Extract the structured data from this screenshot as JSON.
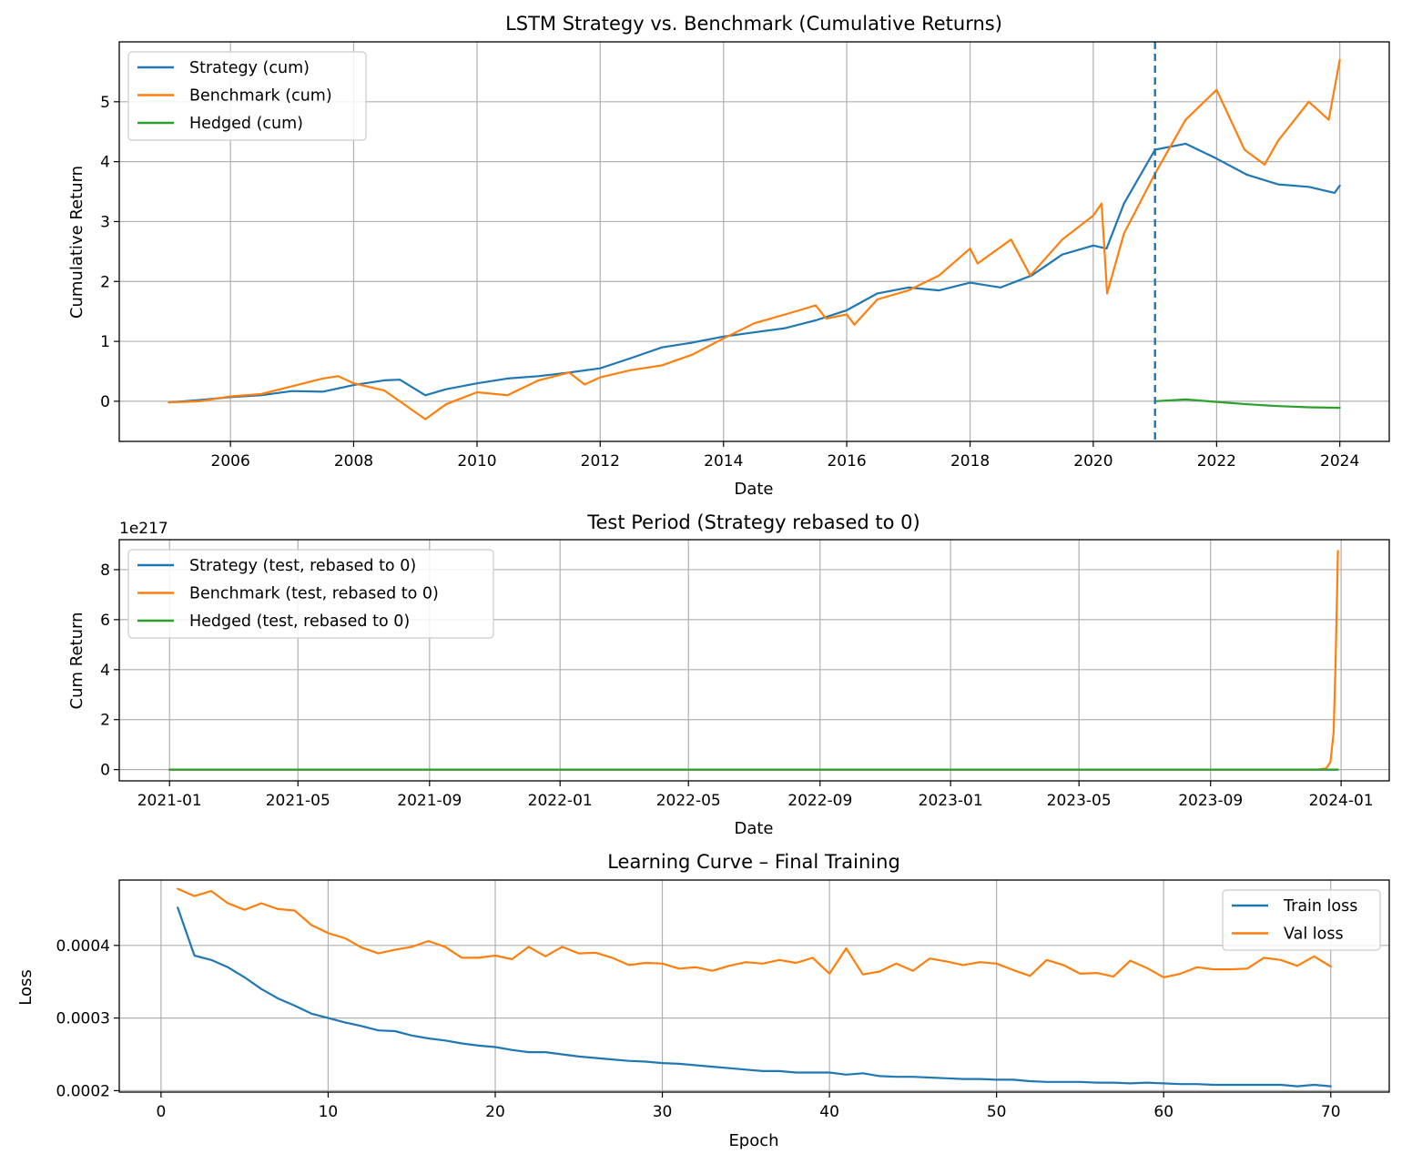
{
  "colors": {
    "strategy": "#1f77b4",
    "benchmark": "#ff7f0e",
    "hedged": "#2ca02c",
    "vline": "#1f77b4"
  },
  "chart_data": [
    {
      "type": "line",
      "title": "LSTM Strategy vs. Benchmark (Cumulative Returns)",
      "xlabel": "Date",
      "ylabel": "Cumulative Return",
      "x_type": "date",
      "xlim": [
        "2004-03-13",
        "2024-10-20"
      ],
      "ylim": [
        -0.67,
        6.0
      ],
      "x_ticks": [
        "2006",
        "2008",
        "2010",
        "2012",
        "2014",
        "2016",
        "2018",
        "2020",
        "2022",
        "2024"
      ],
      "y_ticks": [
        "0",
        "1",
        "2",
        "3",
        "4",
        "5"
      ],
      "y_tick_values": [
        0,
        1,
        2,
        3,
        4,
        5
      ],
      "grid": true,
      "legend": "upper-left",
      "vline": {
        "x": "2021-01-01",
        "style": "dashed"
      },
      "series": [
        {
          "name": "Strategy (cum)",
          "color_key": "strategy",
          "points": [
            [
              "2005-01-01",
              -0.02
            ],
            [
              "2005-07-01",
              0.02
            ],
            [
              "2006-01-01",
              0.07
            ],
            [
              "2006-07-01",
              0.1
            ],
            [
              "2007-01-01",
              0.17
            ],
            [
              "2007-07-01",
              0.16
            ],
            [
              "2008-01-01",
              0.27
            ],
            [
              "2008-07-01",
              0.35
            ],
            [
              "2008-10-01",
              0.36
            ],
            [
              "2009-03-01",
              0.1
            ],
            [
              "2009-07-01",
              0.2
            ],
            [
              "2010-01-01",
              0.3
            ],
            [
              "2010-07-01",
              0.38
            ],
            [
              "2011-01-01",
              0.42
            ],
            [
              "2011-07-01",
              0.48
            ],
            [
              "2012-01-01",
              0.55
            ],
            [
              "2012-07-01",
              0.72
            ],
            [
              "2013-01-01",
              0.9
            ],
            [
              "2013-07-01",
              0.98
            ],
            [
              "2014-01-01",
              1.08
            ],
            [
              "2014-07-01",
              1.15
            ],
            [
              "2015-01-01",
              1.22
            ],
            [
              "2015-07-01",
              1.35
            ],
            [
              "2016-01-01",
              1.52
            ],
            [
              "2016-07-01",
              1.8
            ],
            [
              "2017-01-01",
              1.9
            ],
            [
              "2017-07-01",
              1.85
            ],
            [
              "2018-01-01",
              1.98
            ],
            [
              "2018-07-01",
              1.9
            ],
            [
              "2019-01-01",
              2.1
            ],
            [
              "2019-07-01",
              2.45
            ],
            [
              "2020-01-01",
              2.6
            ],
            [
              "2020-03-20",
              2.55
            ],
            [
              "2020-07-01",
              3.3
            ],
            [
              "2021-01-01",
              4.2
            ],
            [
              "2021-07-01",
              4.3
            ],
            [
              "2022-01-01",
              4.05
            ],
            [
              "2022-07-01",
              3.78
            ],
            [
              "2023-01-01",
              3.62
            ],
            [
              "2023-07-01",
              3.58
            ],
            [
              "2023-12-01",
              3.48
            ],
            [
              "2024-01-01",
              3.6
            ]
          ]
        },
        {
          "name": "Benchmark (cum)",
          "color_key": "benchmark",
          "points": [
            [
              "2005-01-01",
              -0.02
            ],
            [
              "2005-07-01",
              0.0
            ],
            [
              "2006-01-01",
              0.08
            ],
            [
              "2006-07-01",
              0.12
            ],
            [
              "2007-01-01",
              0.25
            ],
            [
              "2007-07-01",
              0.38
            ],
            [
              "2007-10-01",
              0.42
            ],
            [
              "2008-01-01",
              0.3
            ],
            [
              "2008-07-01",
              0.18
            ],
            [
              "2009-03-01",
              -0.3
            ],
            [
              "2009-07-01",
              -0.05
            ],
            [
              "2010-01-01",
              0.15
            ],
            [
              "2010-07-01",
              0.1
            ],
            [
              "2011-01-01",
              0.35
            ],
            [
              "2011-07-01",
              0.48
            ],
            [
              "2011-10-01",
              0.28
            ],
            [
              "2012-01-01",
              0.4
            ],
            [
              "2012-07-01",
              0.52
            ],
            [
              "2013-01-01",
              0.6
            ],
            [
              "2013-07-01",
              0.78
            ],
            [
              "2014-01-01",
              1.05
            ],
            [
              "2014-07-01",
              1.3
            ],
            [
              "2015-01-01",
              1.45
            ],
            [
              "2015-07-01",
              1.6
            ],
            [
              "2015-09-01",
              1.38
            ],
            [
              "2016-01-01",
              1.45
            ],
            [
              "2016-02-15",
              1.28
            ],
            [
              "2016-07-01",
              1.7
            ],
            [
              "2017-01-01",
              1.85
            ],
            [
              "2017-07-01",
              2.1
            ],
            [
              "2018-01-01",
              2.55
            ],
            [
              "2018-02-15",
              2.3
            ],
            [
              "2018-09-01",
              2.7
            ],
            [
              "2018-12-24",
              2.1
            ],
            [
              "2019-07-01",
              2.7
            ],
            [
              "2020-01-01",
              3.1
            ],
            [
              "2020-02-19",
              3.3
            ],
            [
              "2020-03-23",
              1.8
            ],
            [
              "2020-07-01",
              2.8
            ],
            [
              "2021-01-01",
              3.8
            ],
            [
              "2021-07-01",
              4.7
            ],
            [
              "2022-01-01",
              5.2
            ],
            [
              "2022-06-15",
              4.2
            ],
            [
              "2022-10-12",
              3.95
            ],
            [
              "2023-01-01",
              4.35
            ],
            [
              "2023-07-01",
              5.0
            ],
            [
              "2023-10-27",
              4.7
            ],
            [
              "2024-01-01",
              5.7
            ]
          ]
        },
        {
          "name": "Hedged (cum)",
          "color_key": "hedged",
          "points": [
            [
              "2021-01-01",
              0.0
            ],
            [
              "2021-07-01",
              0.03
            ],
            [
              "2022-01-01",
              -0.01
            ],
            [
              "2022-07-01",
              -0.05
            ],
            [
              "2023-01-01",
              -0.08
            ],
            [
              "2023-07-01",
              -0.1
            ],
            [
              "2024-01-01",
              -0.11
            ]
          ]
        }
      ]
    },
    {
      "type": "line",
      "title": "Test Period (Strategy rebased to 0)",
      "xlabel": "Date",
      "ylabel": "Cum Return",
      "x_type": "date",
      "xlim": [
        "2020-11-15",
        "2024-02-15"
      ],
      "ylim": [
        -0.45,
        9.2
      ],
      "y_exponent_label": "1e217",
      "x_ticks": [
        "2021-01",
        "2021-05",
        "2021-09",
        "2022-01",
        "2022-05",
        "2022-09",
        "2023-01",
        "2023-05",
        "2023-09",
        "2024-01"
      ],
      "x_tick_dates": [
        "2021-01-01",
        "2021-05-01",
        "2021-09-01",
        "2022-01-01",
        "2022-05-01",
        "2022-09-01",
        "2023-01-01",
        "2023-05-01",
        "2023-09-01",
        "2024-01-01"
      ],
      "y_ticks": [
        "0",
        "2",
        "4",
        "6",
        "8"
      ],
      "y_tick_values": [
        0,
        2,
        4,
        6,
        8
      ],
      "grid": true,
      "legend": "upper-left",
      "series": [
        {
          "name": "Strategy (test, rebased to 0)",
          "color_key": "strategy",
          "points": [
            [
              "2021-01-01",
              0
            ],
            [
              "2023-12-29",
              0
            ]
          ]
        },
        {
          "name": "Benchmark (test, rebased to 0)",
          "color_key": "benchmark",
          "points": [
            [
              "2021-01-01",
              0
            ],
            [
              "2023-12-10",
              0
            ],
            [
              "2023-12-18",
              0.05
            ],
            [
              "2023-12-22",
              0.3
            ],
            [
              "2023-12-25",
              1.5
            ],
            [
              "2023-12-27",
              4.5
            ],
            [
              "2023-12-29",
              8.75
            ]
          ]
        },
        {
          "name": "Hedged (test, rebased to 0)",
          "color_key": "hedged",
          "points": [
            [
              "2021-01-01",
              0
            ],
            [
              "2023-12-29",
              0
            ]
          ]
        }
      ]
    },
    {
      "type": "line",
      "title": "Learning Curve – Final Training",
      "xlabel": "Epoch",
      "ylabel": "Loss",
      "xlim": [
        -2.5,
        73.5
      ],
      "ylim": [
        0.000198,
        0.00049
      ],
      "x_ticks": [
        "0",
        "10",
        "20",
        "30",
        "40",
        "50",
        "60",
        "70"
      ],
      "x_tick_values": [
        0,
        10,
        20,
        30,
        40,
        50,
        60,
        70
      ],
      "y_ticks": [
        "0.0002",
        "0.0003",
        "0.0004"
      ],
      "y_tick_values": [
        0.0002,
        0.0003,
        0.0004
      ],
      "grid": true,
      "legend": "upper-right",
      "series": [
        {
          "name": "Train loss",
          "color_key": "strategy",
          "epochs_start": 1,
          "values": [
            0.000452,
            0.000386,
            0.00038,
            0.00037,
            0.000356,
            0.00034,
            0.000327,
            0.000317,
            0.000306,
            0.0003,
            0.000294,
            0.000289,
            0.000283,
            0.000282,
            0.000276,
            0.000272,
            0.000269,
            0.000265,
            0.000262,
            0.00026,
            0.000256,
            0.000253,
            0.000253,
            0.00025,
            0.000247,
            0.000245,
            0.000243,
            0.000241,
            0.00024,
            0.000238,
            0.000237,
            0.000235,
            0.000233,
            0.000231,
            0.000229,
            0.000227,
            0.000227,
            0.000225,
            0.000225,
            0.000225,
            0.000222,
            0.000224,
            0.00022,
            0.000219,
            0.000219,
            0.000218,
            0.000217,
            0.000216,
            0.000216,
            0.000215,
            0.000215,
            0.000213,
            0.000212,
            0.000212,
            0.000212,
            0.000211,
            0.000211,
            0.00021,
            0.000211,
            0.00021,
            0.000209,
            0.000209,
            0.000208,
            0.000208,
            0.000208,
            0.000208,
            0.000208,
            0.000206,
            0.000208,
            0.000206
          ]
        },
        {
          "name": "Val loss",
          "color_key": "benchmark",
          "epochs_start": 1,
          "values": [
            0.000478,
            0.000468,
            0.000475,
            0.000458,
            0.000449,
            0.000458,
            0.00045,
            0.000448,
            0.000428,
            0.000417,
            0.00041,
            0.000397,
            0.000389,
            0.000394,
            0.000398,
            0.000406,
            0.000398,
            0.000383,
            0.000383,
            0.000386,
            0.000381,
            0.000398,
            0.000385,
            0.000398,
            0.000389,
            0.00039,
            0.000383,
            0.000373,
            0.000376,
            0.000375,
            0.000368,
            0.00037,
            0.000365,
            0.000372,
            0.000377,
            0.000375,
            0.00038,
            0.000376,
            0.000383,
            0.000361,
            0.000396,
            0.00036,
            0.000364,
            0.000375,
            0.000365,
            0.000382,
            0.000378,
            0.000373,
            0.000377,
            0.000375,
            0.000366,
            0.000358,
            0.00038,
            0.000373,
            0.000361,
            0.000362,
            0.000357,
            0.000379,
            0.000369,
            0.000356,
            0.000361,
            0.00037,
            0.000367,
            0.000367,
            0.000368,
            0.000383,
            0.00038,
            0.000372,
            0.000385,
            0.000371
          ]
        }
      ]
    }
  ]
}
